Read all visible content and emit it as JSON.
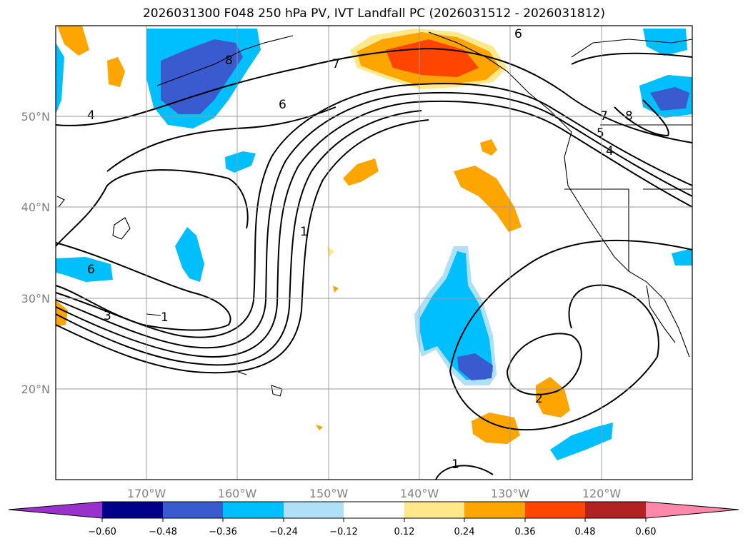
{
  "title": "2026031300 F048 250 hPa PV, IVT Landfall PC (2026031512 - 2026031812)",
  "lat_labels": [
    "50°N",
    "40°N",
    "30°N",
    "20°N"
  ],
  "lon_labels": [
    "170°W",
    "160°W",
    "150°W",
    "140°W",
    "130°W",
    "120°W"
  ],
  "colorbar": {
    "ticks": [
      "−0.60",
      "−0.48",
      "−0.36",
      "−0.24",
      "−0.12",
      "0.12",
      "0.24",
      "0.36",
      "0.48",
      "0.60"
    ],
    "colors": [
      "#9932cc",
      "#00008b",
      "#3a5bd0",
      "#00bfff",
      "#b0e0f8",
      "#ffffff",
      "#ffe88a",
      "#ffa500",
      "#ff4500",
      "#b22222",
      "#ff88aa"
    ]
  },
  "contour_labels": [
    "7",
    "6",
    "8",
    "4",
    "6",
    "1",
    "6",
    "3",
    "1",
    "2",
    "1",
    "8",
    "7",
    "5",
    "4"
  ]
}
